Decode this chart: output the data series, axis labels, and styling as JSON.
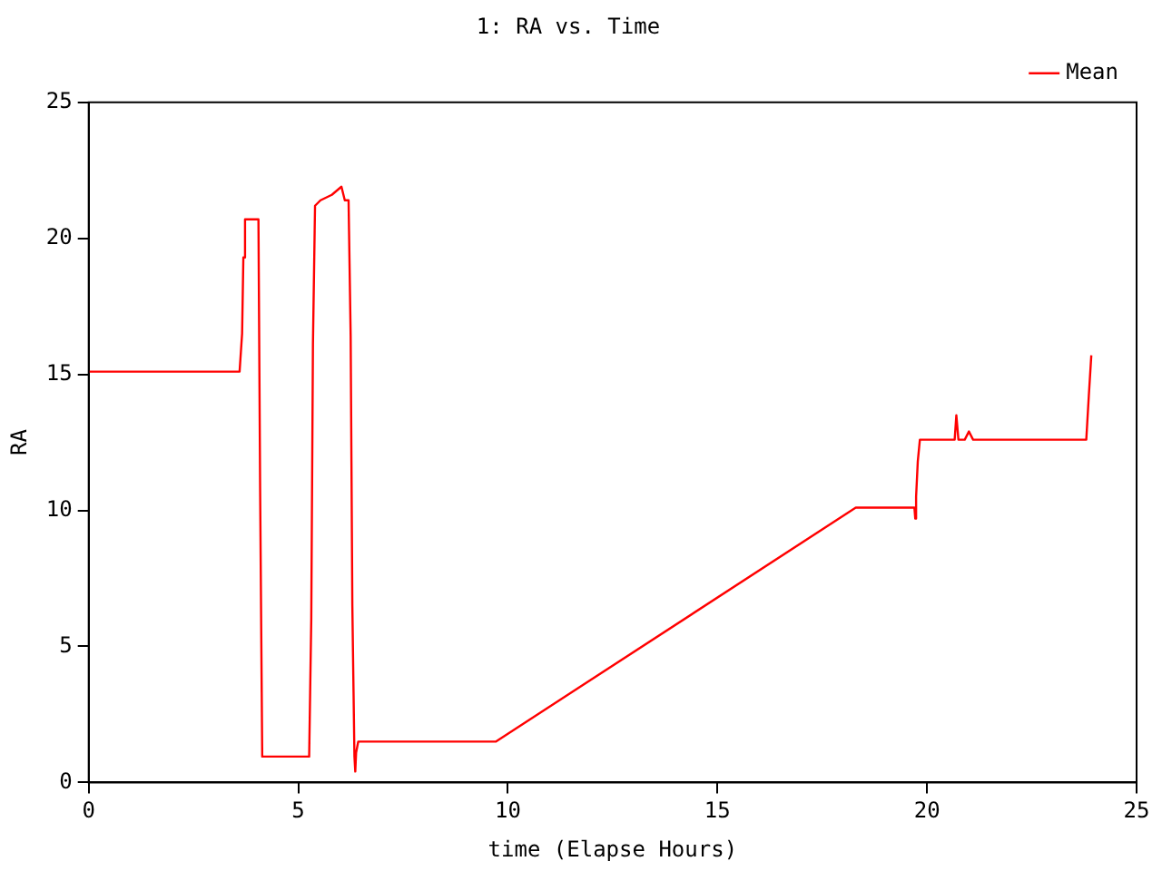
{
  "chart_data": {
    "type": "line",
    "title": "1: RA vs. Time",
    "xlabel": "time (Elapse Hours)",
    "ylabel": "RA",
    "x": [
      0,
      3.6,
      3.66,
      3.69,
      3.73,
      4.05,
      4.09,
      4.14,
      5.26,
      5.31,
      5.35,
      5.4,
      5.53,
      5.8,
      6.03,
      6.11,
      6.2,
      6.25,
      6.29,
      6.34,
      6.36,
      6.38,
      6.43,
      9.71,
      18.3,
      19.7,
      19.72,
      19.74,
      19.78,
      19.83,
      20.66,
      20.7,
      20.75,
      20.9,
      21.0,
      21.1,
      23.8,
      23.86,
      23.92
    ],
    "series": [
      {
        "name": "Mean",
        "color": "#ff0000",
        "values": [
          15.1,
          15.1,
          16.5,
          19.3,
          20.7,
          20.7,
          10.8,
          0.95,
          0.95,
          6.0,
          16.1,
          21.2,
          21.4,
          21.6,
          21.9,
          21.4,
          21.4,
          16.4,
          6.5,
          0.95,
          0.4,
          1.1,
          1.5,
          1.5,
          10.1,
          10.1,
          9.7,
          10.5,
          11.8,
          12.6,
          12.6,
          13.5,
          12.6,
          12.6,
          12.9,
          12.6,
          12.6,
          14.2,
          15.7
        ]
      }
    ],
    "xlim": [
      0,
      25
    ],
    "xticks": [
      0,
      5,
      10,
      15,
      20,
      25
    ],
    "ylim": [
      0,
      25
    ],
    "yticks": [
      0,
      5,
      10,
      15,
      20,
      25
    ],
    "grid": false,
    "legend": "top right",
    "marker": "none",
    "line_style": "solid"
  }
}
